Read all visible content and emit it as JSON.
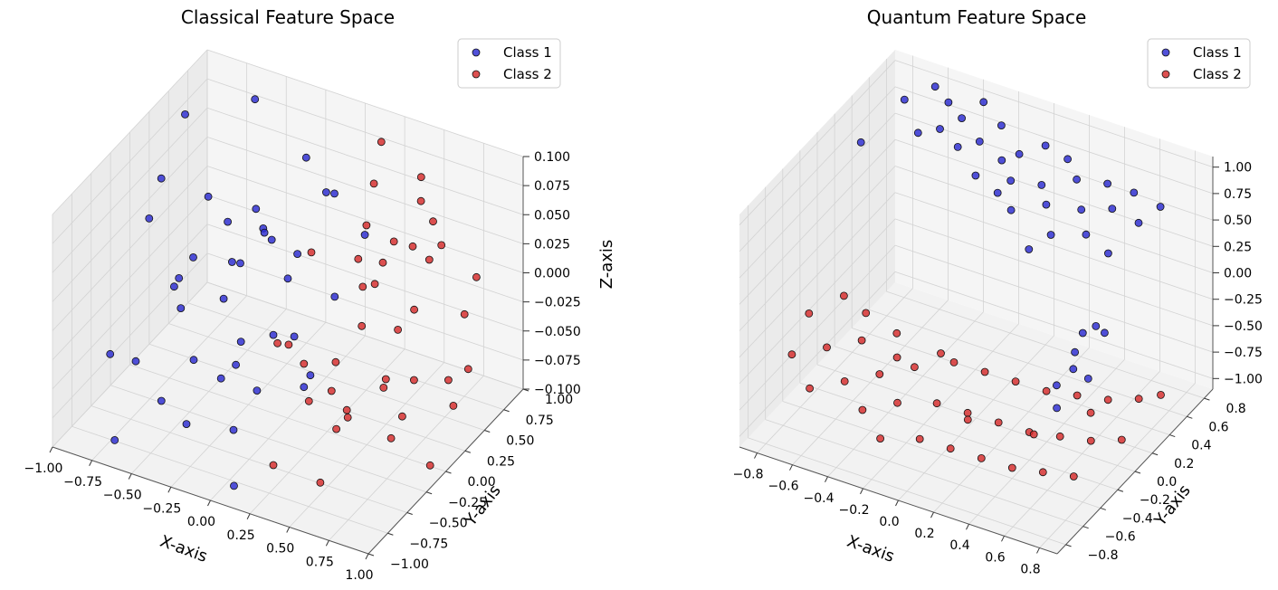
{
  "chart_data": [
    {
      "type": "scatter",
      "projection": "3d",
      "title": "Classical Feature Space",
      "xlabel": "X-axis",
      "ylabel": "Y-axis",
      "zlabel": "Z-axis",
      "xlim": [
        -1.0,
        1.0
      ],
      "ylim": [
        -1.0,
        1.0
      ],
      "zlim": [
        -0.1,
        0.1
      ],
      "xticks": [
        "−1.00",
        "−0.75",
        "−0.50",
        "−0.25",
        "0.00",
        "0.25",
        "0.50",
        "0.75",
        "1.00"
      ],
      "xtick_values": [
        -1.0,
        -0.75,
        -0.5,
        -0.25,
        0.0,
        0.25,
        0.5,
        0.75,
        1.0
      ],
      "yticks": [
        "−1.00",
        "−0.75",
        "−0.50",
        "−0.25",
        "0.00",
        "0.25",
        "0.50",
        "0.75",
        "1.00"
      ],
      "ytick_values": [
        -1.0,
        -0.75,
        -0.5,
        -0.25,
        0.0,
        0.25,
        0.5,
        0.75,
        1.0
      ],
      "zticks": [
        "−0.100",
        "−0.075",
        "−0.050",
        "−0.025",
        "0.000",
        "0.025",
        "0.050",
        "0.075",
        "0.100"
      ],
      "ztick_values": [
        -0.1,
        -0.075,
        -0.05,
        -0.025,
        0.0,
        0.025,
        0.05,
        0.075,
        0.1
      ],
      "legend": "top-right",
      "grid": true,
      "series": [
        {
          "name": "Class 1",
          "color": "#2b2bd1",
          "points": [
            [
              -0.92,
              0.55,
              0.08
            ],
            [
              -0.85,
              0.1,
              0.06
            ],
            [
              -0.78,
              -0.2,
              0.05
            ],
            [
              -0.7,
              0.4,
              0.03
            ],
            [
              -0.88,
              -0.5,
              -0.05
            ],
            [
              -0.6,
              0.8,
              0.09
            ],
            [
              -0.55,
              -0.1,
              0.02
            ],
            [
              -0.5,
              0.3,
              -0.01
            ],
            [
              -0.62,
              -0.7,
              -0.03
            ],
            [
              -0.45,
              0.6,
              0.0
            ],
            [
              -0.4,
              -0.4,
              -0.04
            ],
            [
              -0.35,
              0.1,
              0.01
            ],
            [
              -0.3,
              0.85,
              0.05
            ],
            [
              -0.25,
              -0.8,
              -0.06
            ],
            [
              -0.2,
              0.2,
              0.03
            ],
            [
              -0.15,
              -0.3,
              -0.02
            ],
            [
              -0.1,
              0.7,
              0.04
            ],
            [
              -0.05,
              -0.6,
              -0.07
            ],
            [
              0.0,
              0.0,
              0.02
            ],
            [
              0.05,
              0.5,
              0.06
            ],
            [
              0.1,
              -0.9,
              -0.09
            ],
            [
              0.15,
              0.3,
              -0.01
            ],
            [
              0.2,
              -0.2,
              -0.05
            ],
            [
              -0.72,
              0.0,
              -0.02
            ],
            [
              -0.65,
              0.55,
              0.0
            ],
            [
              -0.58,
              -0.45,
              -0.08
            ],
            [
              -0.48,
              0.15,
              -0.03
            ],
            [
              -0.38,
              0.9,
              -0.04
            ],
            [
              -0.28,
              -0.1,
              -0.06
            ],
            [
              -0.18,
              0.45,
              -0.07
            ],
            [
              -0.08,
              -0.7,
              -0.02
            ],
            [
              0.02,
              0.25,
              -0.08
            ],
            [
              0.12,
              0.75,
              0.01
            ],
            [
              -0.8,
              0.25,
              -0.06
            ],
            [
              -0.68,
              -0.85,
              -0.09
            ],
            [
              -0.52,
              0.65,
              0.01
            ],
            [
              -0.42,
              -0.55,
              0.04
            ],
            [
              -0.32,
              0.35,
              0.02
            ],
            [
              0.08,
              -0.35,
              0.0
            ],
            [
              -0.22,
              0.05,
              -0.09
            ]
          ]
        },
        {
          "name": "Class 2",
          "color": "#d62b2b",
          "points": [
            [
              0.2,
              0.8,
              0.09
            ],
            [
              0.3,
              0.5,
              0.08
            ],
            [
              0.4,
              0.2,
              0.07
            ],
            [
              0.5,
              0.7,
              0.06
            ],
            [
              0.6,
              -0.1,
              0.05
            ],
            [
              0.7,
              0.4,
              0.04
            ],
            [
              0.8,
              0.0,
              0.03
            ],
            [
              0.9,
              0.6,
              0.02
            ],
            [
              0.25,
              -0.5,
              0.01
            ],
            [
              0.35,
              0.9,
              0.0
            ],
            [
              0.45,
              -0.3,
              -0.01
            ],
            [
              0.55,
              0.3,
              -0.02
            ],
            [
              0.65,
              -0.7,
              -0.03
            ],
            [
              0.75,
              0.1,
              -0.04
            ],
            [
              0.85,
              -0.4,
              -0.05
            ],
            [
              0.95,
              0.2,
              -0.06
            ],
            [
              0.3,
              -0.8,
              -0.07
            ],
            [
              0.4,
              0.45,
              -0.08
            ],
            [
              0.5,
              -0.6,
              -0.09
            ],
            [
              0.6,
              0.85,
              -0.1
            ],
            [
              0.1,
              0.1,
              0.04
            ],
            [
              0.2,
              -0.2,
              -0.03
            ],
            [
              0.7,
              -0.2,
              0.08
            ],
            [
              0.8,
              0.65,
              -0.02
            ],
            [
              0.45,
              0.05,
              0.03
            ],
            [
              0.55,
              -0.85,
              0.0
            ],
            [
              0.65,
              0.55,
              0.06
            ],
            [
              0.35,
              -0.15,
              -0.05
            ],
            [
              0.9,
              -0.6,
              0.01
            ],
            [
              0.15,
              0.65,
              -0.06
            ],
            [
              0.75,
              0.8,
              -0.08
            ],
            [
              0.5,
              0.35,
              0.05
            ],
            [
              0.6,
              -0.45,
              -0.04
            ],
            [
              0.85,
              0.25,
              0.07
            ],
            [
              0.25,
              0.4,
              0.02
            ],
            [
              0.4,
              -0.95,
              0.05
            ],
            [
              0.95,
              -0.1,
              -0.09
            ],
            [
              0.7,
              0.05,
              -0.07
            ],
            [
              0.3,
              0.15,
              -0.09
            ],
            [
              0.55,
              0.6,
              0.09
            ]
          ]
        }
      ]
    },
    {
      "type": "scatter",
      "projection": "3d",
      "title": "Quantum Feature Space",
      "xlabel": "X-axis",
      "ylabel": "Y-axis",
      "zlabel": "",
      "xlim": [
        -0.9,
        0.9
      ],
      "ylim": [
        -0.9,
        0.9
      ],
      "zlim": [
        -1.1,
        1.1
      ],
      "xticks": [
        "−0.8",
        "−0.6",
        "−0.4",
        "−0.2",
        "0.0",
        "0.2",
        "0.4",
        "0.6",
        "0.8"
      ],
      "xtick_values": [
        -0.8,
        -0.6,
        -0.4,
        -0.2,
        0.0,
        0.2,
        0.4,
        0.6,
        0.8
      ],
      "yticks": [
        "−0.8",
        "−0.6",
        "−0.4",
        "−0.2",
        "0.0",
        "0.2",
        "0.4",
        "0.6",
        "0.8"
      ],
      "ytick_values": [
        -0.8,
        -0.6,
        -0.4,
        -0.2,
        0.0,
        0.2,
        0.4,
        0.6,
        0.8
      ],
      "zticks": [
        "−1.00",
        "−0.75",
        "−0.50",
        "−0.25",
        "0.00",
        "0.25",
        "0.50",
        "0.75",
        "1.00"
      ],
      "ztick_values": [
        -1.0,
        -0.75,
        -0.5,
        -0.25,
        0.0,
        0.25,
        0.5,
        0.75,
        1.0
      ],
      "legend": "top-right",
      "grid": true,
      "series": [
        {
          "name": "Class 1",
          "color": "#2b2bd1",
          "points": [
            [
              -0.8,
              0.3,
              0.8
            ],
            [
              -0.7,
              0.6,
              1.0
            ],
            [
              -0.6,
              0.75,
              1.05
            ],
            [
              -0.5,
              0.7,
              1.0
            ],
            [
              -0.45,
              0.5,
              0.95
            ],
            [
              -0.4,
              0.65,
              0.95
            ],
            [
              -0.35,
              0.8,
              1.0
            ],
            [
              -0.3,
              0.4,
              0.95
            ],
            [
              -0.25,
              0.55,
              0.9
            ],
            [
              -0.2,
              0.7,
              0.95
            ],
            [
              -0.15,
              0.3,
              0.85
            ],
            [
              -0.1,
              0.5,
              0.85
            ],
            [
              -0.05,
              0.6,
              0.85
            ],
            [
              0.0,
              0.4,
              0.8
            ],
            [
              0.05,
              0.7,
              0.9
            ],
            [
              0.1,
              0.2,
              0.75
            ],
            [
              0.15,
              0.45,
              0.8
            ],
            [
              0.2,
              0.65,
              0.9
            ],
            [
              0.25,
              0.3,
              0.8
            ],
            [
              0.3,
              0.55,
              0.85
            ],
            [
              0.35,
              0.15,
              0.7
            ],
            [
              0.4,
              0.4,
              0.75
            ],
            [
              0.45,
              0.6,
              0.85
            ],
            [
              0.5,
              0.25,
              0.7
            ],
            [
              0.55,
              0.45,
              0.8
            ],
            [
              0.6,
              0.6,
              0.85
            ],
            [
              0.65,
              0.2,
              0.65
            ],
            [
              0.7,
              0.45,
              0.75
            ],
            [
              0.75,
              0.6,
              0.8
            ],
            [
              -0.55,
              0.45,
              0.9
            ],
            [
              -0.05,
              0.35,
              0.7
            ],
            [
              0.25,
              0.1,
              0.55
            ],
            [
              0.8,
              -0.4,
              0.5
            ],
            [
              0.82,
              -0.55,
              0.3
            ],
            [
              0.85,
              -0.25,
              0.4
            ],
            [
              0.8,
              -0.7,
              0.05
            ],
            [
              0.75,
              -0.6,
              0.15
            ],
            [
              0.88,
              -0.5,
              0.2
            ],
            [
              0.85,
              -0.35,
              0.55
            ],
            [
              0.78,
              -0.45,
              0.35
            ]
          ]
        },
        {
          "name": "Class 2",
          "color": "#d62b2b",
          "points": [
            [
              -0.8,
              -0.3,
              -0.3
            ],
            [
              -0.75,
              -0.6,
              -0.4
            ],
            [
              -0.7,
              -0.1,
              -0.25
            ],
            [
              -0.65,
              -0.4,
              -0.45
            ],
            [
              -0.6,
              -0.7,
              -0.55
            ],
            [
              -0.55,
              -0.2,
              -0.5
            ],
            [
              -0.5,
              -0.5,
              -0.6
            ],
            [
              -0.45,
              0.0,
              -0.55
            ],
            [
              -0.4,
              -0.3,
              -0.65
            ],
            [
              -0.35,
              -0.6,
              -0.7
            ],
            [
              -0.3,
              -0.1,
              -0.7
            ],
            [
              -0.25,
              -0.4,
              -0.75
            ],
            [
              -0.2,
              -0.7,
              -0.8
            ],
            [
              -0.15,
              0.05,
              -0.7
            ],
            [
              -0.1,
              -0.25,
              -0.8
            ],
            [
              -0.05,
              -0.55,
              -0.85
            ],
            [
              0.0,
              0.1,
              -0.75
            ],
            [
              0.05,
              -0.2,
              -0.85
            ],
            [
              0.1,
              -0.5,
              -0.9
            ],
            [
              0.15,
              0.15,
              -0.8
            ],
            [
              0.2,
              -0.15,
              -0.9
            ],
            [
              0.25,
              -0.45,
              -0.95
            ],
            [
              0.3,
              0.2,
              -0.85
            ],
            [
              0.35,
              -0.1,
              -0.95
            ],
            [
              0.4,
              -0.4,
              -1.0
            ],
            [
              0.45,
              0.25,
              -0.85
            ],
            [
              0.5,
              -0.05,
              -0.95
            ],
            [
              0.55,
              -0.35,
              -1.0
            ],
            [
              0.6,
              0.3,
              -0.85
            ],
            [
              0.65,
              0.0,
              -0.95
            ],
            [
              0.7,
              -0.3,
              -1.0
            ],
            [
              0.75,
              0.35,
              -0.8
            ],
            [
              0.8,
              0.05,
              -0.9
            ],
            [
              0.85,
              0.4,
              -0.75
            ],
            [
              -0.6,
              -0.05,
              -0.4
            ],
            [
              -0.2,
              0.0,
              -0.6
            ],
            [
              0.1,
              -0.3,
              -0.8
            ],
            [
              0.4,
              -0.15,
              -0.9
            ],
            [
              0.6,
              0.1,
              -0.8
            ],
            [
              -0.35,
              -0.2,
              -0.55
            ]
          ]
        }
      ]
    }
  ]
}
